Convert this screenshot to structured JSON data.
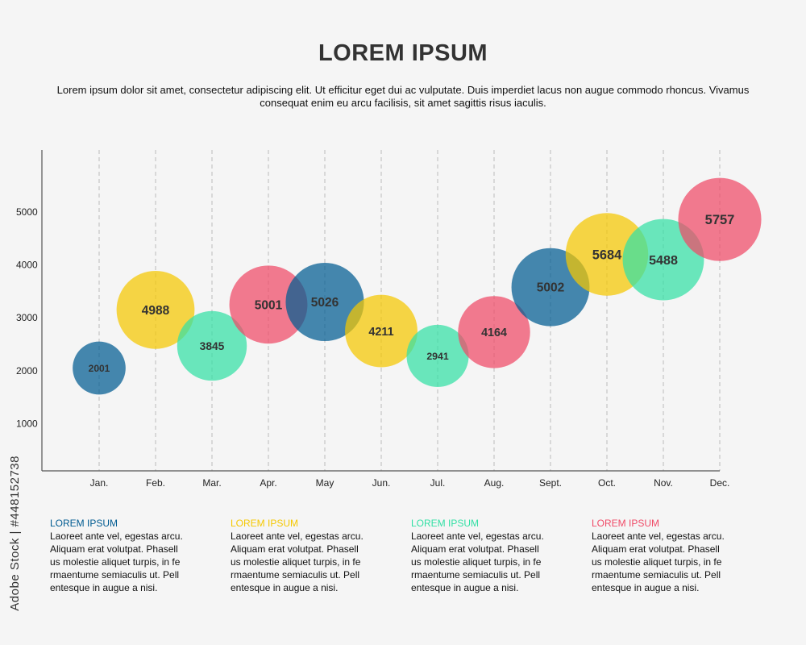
{
  "title": "LOREM IPSUM",
  "subtitle": "Lorem ipsum dolor sit amet, consectetur adipiscing elit. Ut efficitur eget dui ac vulputate. Duis imperdiet lacus non augue commodo rhoncus. Vivamus consequat enim eu arcu facilisis, sit amet sagittis risus iaculis.",
  "watermark": "Adobe Stock | #448152738",
  "colors": {
    "blue": "#005b91",
    "yellow": "#f5c800",
    "teal": "#33e0a5",
    "red": "#f04a67",
    "axis": "#555555",
    "grid": "#bbbbbb"
  },
  "chart_data": {
    "type": "scatter",
    "categories": [
      "Jan.",
      "Feb.",
      "Mar.",
      "Apr.",
      "May",
      "Jun.",
      "Jul.",
      "Aug.",
      "Sept.",
      "Oct.",
      "Nov.",
      "Dec."
    ],
    "y_ticks": [
      "1000",
      "2000",
      "3000",
      "4000",
      "5000"
    ],
    "ylim": [
      0,
      6000
    ],
    "xlabel": "",
    "ylabel": "",
    "grid": "vertical dashed",
    "points": [
      {
        "category": "Jan.",
        "y": 2050,
        "label": "2001",
        "size": 2001,
        "color": "blue"
      },
      {
        "category": "Feb.",
        "y": 3150,
        "label": "4988",
        "size": 4988,
        "color": "yellow"
      },
      {
        "category": "Mar.",
        "y": 2470,
        "label": "3845",
        "size": 3845,
        "color": "teal"
      },
      {
        "category": "Apr.",
        "y": 3250,
        "label": "5001",
        "size": 5001,
        "color": "red"
      },
      {
        "category": "May",
        "y": 3300,
        "label": "5026",
        "size": 5026,
        "color": "blue"
      },
      {
        "category": "Jun.",
        "y": 2750,
        "label": "4211",
        "size": 4211,
        "color": "yellow"
      },
      {
        "category": "Jul.",
        "y": 2280,
        "label": "2941",
        "size": 2941,
        "color": "teal"
      },
      {
        "category": "Aug.",
        "y": 2730,
        "label": "4164",
        "size": 4164,
        "color": "red"
      },
      {
        "category": "Sept.",
        "y": 3580,
        "label": "5002",
        "size": 5002,
        "color": "blue"
      },
      {
        "category": "Oct.",
        "y": 4200,
        "label": "5684",
        "size": 5684,
        "color": "yellow"
      },
      {
        "category": "Nov.",
        "y": 4100,
        "label": "5488",
        "size": 5488,
        "color": "teal"
      },
      {
        "category": "Dec.",
        "y": 4860,
        "label": "5757",
        "size": 5757,
        "color": "red"
      }
    ]
  },
  "notes": [
    {
      "title": "LOREM IPSUM",
      "color": "blue",
      "body": "Laoreet ante vel, egestas arcu.\nAliquam erat volutpat. Phasell\nus molestie aliquet turpis, in fe\nrmaentume semiaculis ut. Pell\nentesque in augue a nisi."
    },
    {
      "title": "LOREM IPSUM",
      "color": "yellow",
      "body": "Laoreet ante vel, egestas arcu.\nAliquam erat volutpat. Phasell\nus molestie aliquet turpis, in fe\nrmaentume semiaculis ut. Pell\nentesque in augue a nisi."
    },
    {
      "title": "LOREM IPSUM",
      "color": "teal",
      "body": "Laoreet ante vel, egestas arcu.\nAliquam erat volutpat. Phasell\nus molestie aliquet turpis, in fe\nrmaentume semiaculis ut. Pell\nentesque in augue a nisi."
    },
    {
      "title": "LOREM IPSUM",
      "color": "red",
      "body": "Laoreet ante vel, egestas arcu.\nAliquam erat volutpat. Phasell\nus molestie aliquet turpis, in fe\nrmaentume semiaculis ut. Pell\nentesque in augue a nisi."
    }
  ]
}
